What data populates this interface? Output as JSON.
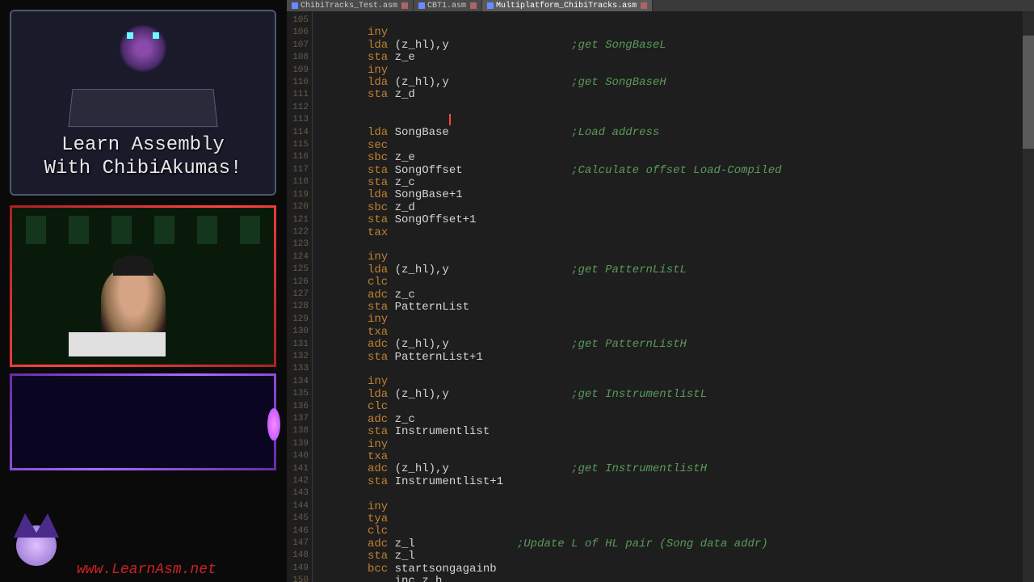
{
  "sidebar": {
    "chip_label": "LearnAsm.net",
    "title_line1": "Learn Assembly",
    "title_line2": "With ChibiAkumas!",
    "url": "www.LearnAsm.net"
  },
  "tabs": [
    {
      "label": "ChibiTracks_Test.asm",
      "active": false
    },
    {
      "label": "CBT1.asm",
      "active": false
    },
    {
      "label": "Multiplatform_ChibiTracks.asm",
      "active": true
    }
  ],
  "editor": {
    "first_line": 105,
    "colors": {
      "instruction": "#c08030",
      "identifier": "#d4d4d4",
      "comment": "#5a9a5a",
      "background": "#1e1e1e",
      "gutter_text": "#6a5a4a",
      "cursor": "#ff4444"
    },
    "lines": [
      {
        "inst": "",
        "args": "",
        "comment": ""
      },
      {
        "inst": "iny",
        "args": "",
        "comment": ""
      },
      {
        "inst": "lda",
        "args": " (z_hl),y",
        "comment": ";get SongBaseL",
        "cc": 30
      },
      {
        "inst": "sta",
        "args": " z_e",
        "comment": ""
      },
      {
        "inst": "iny",
        "args": "",
        "comment": ""
      },
      {
        "inst": "lda",
        "args": " (z_hl),y",
        "comment": ";get SongBaseH",
        "cc": 30
      },
      {
        "inst": "sta",
        "args": " z_d",
        "comment": ""
      },
      {
        "inst": "",
        "args": "",
        "comment": ""
      },
      {
        "inst": "",
        "args": "",
        "comment": "",
        "cursor": true
      },
      {
        "inst": "lda",
        "args": " SongBase",
        "comment": ";Load address",
        "cc": 30
      },
      {
        "inst": "sec",
        "args": "",
        "comment": ""
      },
      {
        "inst": "sbc",
        "args": " z_e",
        "comment": ""
      },
      {
        "inst": "sta",
        "args": " SongOffset",
        "comment": ";Calculate offset Load-Compiled",
        "cc": 30
      },
      {
        "inst": "sta",
        "args": " z_c",
        "comment": ""
      },
      {
        "inst": "lda",
        "args": " SongBase+1",
        "comment": ""
      },
      {
        "inst": "sbc",
        "args": " z_d",
        "comment": ""
      },
      {
        "inst": "sta",
        "args": " SongOffset+1",
        "comment": ""
      },
      {
        "inst": "tax",
        "args": "",
        "comment": ""
      },
      {
        "inst": "",
        "args": "",
        "comment": ""
      },
      {
        "inst": "iny",
        "args": "",
        "comment": ""
      },
      {
        "inst": "lda",
        "args": " (z_hl),y",
        "comment": ";get PatternListL",
        "cc": 30
      },
      {
        "inst": "clc",
        "args": "",
        "comment": ""
      },
      {
        "inst": "adc",
        "args": " z_c",
        "comment": ""
      },
      {
        "inst": "sta",
        "args": " PatternList",
        "comment": ""
      },
      {
        "inst": "iny",
        "args": "",
        "comment": ""
      },
      {
        "inst": "txa",
        "args": "",
        "comment": ""
      },
      {
        "inst": "adc",
        "args": " (z_hl),y",
        "comment": ";get PatternListH",
        "cc": 30
      },
      {
        "inst": "sta",
        "args": " PatternList+1",
        "comment": ""
      },
      {
        "inst": "",
        "args": "",
        "comment": ""
      },
      {
        "inst": "iny",
        "args": "",
        "comment": ""
      },
      {
        "inst": "lda",
        "args": " (z_hl),y",
        "comment": ";get InstrumentlistL",
        "cc": 30
      },
      {
        "inst": "clc",
        "args": "",
        "comment": ""
      },
      {
        "inst": "adc",
        "args": " z_c",
        "comment": ""
      },
      {
        "inst": "sta",
        "args": " Instrumentlist",
        "comment": ""
      },
      {
        "inst": "iny",
        "args": "",
        "comment": ""
      },
      {
        "inst": "txa",
        "args": "",
        "comment": ""
      },
      {
        "inst": "adc",
        "args": " (z_hl),y",
        "comment": ";get InstrumentlistH",
        "cc": 30
      },
      {
        "inst": "sta",
        "args": " Instrumentlist+1",
        "comment": ""
      },
      {
        "inst": "",
        "args": "",
        "comment": ""
      },
      {
        "inst": "iny",
        "args": "",
        "comment": ""
      },
      {
        "inst": "tya",
        "args": "",
        "comment": ""
      },
      {
        "inst": "clc",
        "args": "",
        "comment": ""
      },
      {
        "inst": "adc",
        "args": " z_l",
        "comment": ";Update L of HL pair (Song data addr)",
        "cc": 22
      },
      {
        "inst": "sta",
        "args": " z_l",
        "comment": ""
      },
      {
        "inst": "bcc",
        "args": " startsongagainb",
        "comment": ""
      },
      {
        "inst": "",
        "args": "    inc z_h",
        "comment": "",
        "raw": true
      }
    ]
  }
}
